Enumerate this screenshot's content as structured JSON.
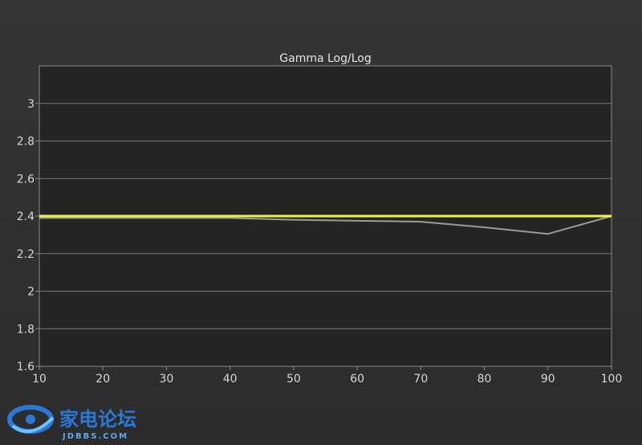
{
  "chart_data": {
    "type": "line",
    "title": "Gamma Log/Log",
    "xlabel": "",
    "ylabel": "",
    "x": [
      10,
      20,
      30,
      40,
      50,
      60,
      70,
      80,
      90,
      100
    ],
    "xlim": [
      10,
      100
    ],
    "ylim": [
      1.6,
      3.2
    ],
    "x_ticks": [
      10,
      20,
      30,
      40,
      50,
      60,
      70,
      80,
      90,
      100
    ],
    "y_ticks": [
      1.6,
      1.8,
      2,
      2.2,
      2.4,
      2.6,
      2.8,
      3
    ],
    "grid": true,
    "series": [
      {
        "color": "#f2f24a",
        "values": [
          2.4,
          2.4,
          2.4,
          2.4,
          2.4,
          2.4,
          2.4,
          2.4,
          2.4,
          2.4
        ]
      },
      {
        "color": "#9a9a9a",
        "values": [
          2.39,
          2.39,
          2.39,
          2.39,
          2.38,
          2.375,
          2.37,
          2.34,
          2.305,
          2.4
        ]
      }
    ],
    "colors": {
      "plot_background": "#242424",
      "grid": "#7a7a7a",
      "axis": "#8a8a8a"
    }
  },
  "watermark": {
    "logo_text": "家电论坛",
    "site": "JDBBS.COM"
  }
}
